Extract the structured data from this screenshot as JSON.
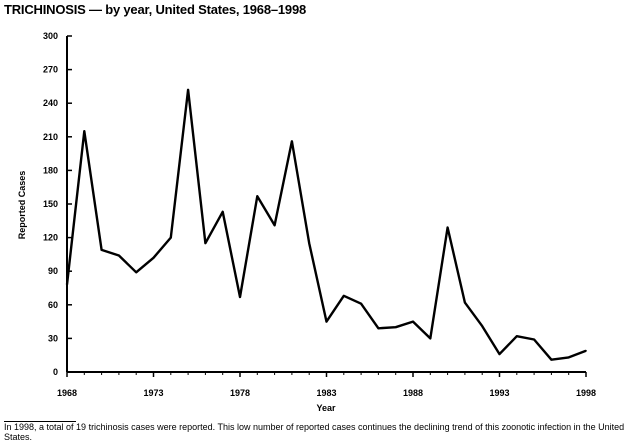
{
  "title": "TRICHINOSIS — by year, United States, 1968–1998",
  "footnote": "In 1998, a total of 19 trichinosis cases were reported. This low number of reported cases continues the declining trend of this zoonotic infection in the United States.",
  "chart_data": {
    "type": "line",
    "title": "TRICHINOSIS — by year, United States, 1968–1998",
    "xlabel": "Year",
    "ylabel": "Reported Cases",
    "xlim": [
      1968,
      1998
    ],
    "ylim": [
      0,
      300
    ],
    "x_ticks": [
      1968,
      1973,
      1978,
      1983,
      1988,
      1993,
      1998
    ],
    "y_ticks": [
      0,
      30,
      60,
      90,
      120,
      150,
      180,
      210,
      240,
      270,
      300
    ],
    "grid": false,
    "x": [
      1968,
      1969,
      1970,
      1971,
      1972,
      1973,
      1974,
      1975,
      1976,
      1977,
      1978,
      1979,
      1980,
      1981,
      1982,
      1983,
      1984,
      1985,
      1986,
      1987,
      1988,
      1989,
      1990,
      1991,
      1992,
      1993,
      1994,
      1995,
      1996,
      1997,
      1998
    ],
    "series": [
      {
        "values": [
          78,
          215,
          109,
          104,
          89,
          102,
          120,
          252,
          115,
          143,
          67,
          157,
          131,
          206,
          115,
          45,
          68,
          61,
          39,
          40,
          45,
          30,
          129,
          62,
          41,
          16,
          32,
          29,
          11,
          13,
          19
        ]
      }
    ],
    "line_color": "#000000"
  }
}
